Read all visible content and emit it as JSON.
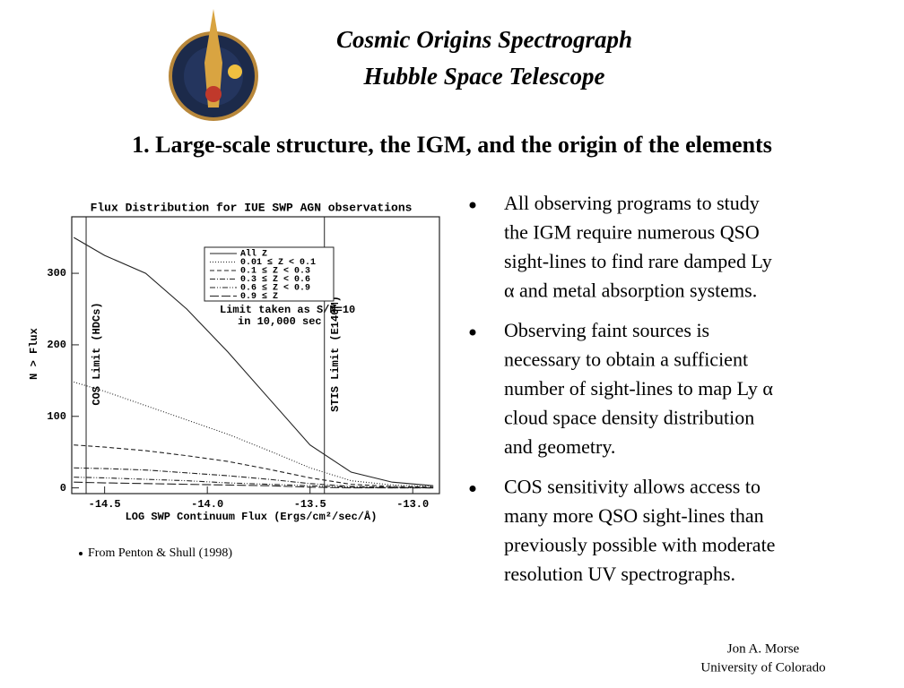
{
  "header": {
    "lines": [
      "Cosmic Origins Spectrograph",
      "Hubble Space Telescope"
    ]
  },
  "heading": "1. Large-scale structure, the IGM, and the origin of the elements",
  "chart_data": {
    "type": "line",
    "title": "Flux Distribution for IUE SWP AGN observations",
    "x_label": "LOG SWP Continuum Flux (Ergs/cm²/sec/Å)",
    "y_label": "N > Flux",
    "x": [
      -14.65,
      -14.5,
      -14.3,
      -14.1,
      -13.9,
      -13.7,
      -13.5,
      -13.3,
      -13.1,
      -12.9
    ],
    "series": [
      {
        "name": "All Z",
        "color": "#222222",
        "dash": "none",
        "values": [
          350,
          325,
          300,
          250,
          190,
          125,
          60,
          22,
          8,
          3
        ]
      },
      {
        "name": "0.01 ≤ Z < 0.1",
        "color": "#222222",
        "dash": "1 2",
        "values": [
          148,
          135,
          115,
          95,
          75,
          52,
          28,
          10,
          4,
          2
        ]
      },
      {
        "name": "0.1 ≤ Z < 0.3",
        "color": "#222222",
        "dash": "5 3",
        "values": [
          60,
          57,
          52,
          45,
          37,
          26,
          14,
          5,
          2,
          1
        ]
      },
      {
        "name": "0.3 ≤ Z < 0.6",
        "color": "#222222",
        "dash": "6 2 1 2",
        "values": [
          28,
          27,
          25,
          21,
          17,
          12,
          6,
          2,
          1,
          0
        ]
      },
      {
        "name": "0.6 ≤ Z < 0.9",
        "color": "#222222",
        "dash": "6 2 1 2 1 2",
        "values": [
          15,
          14,
          12,
          10,
          7,
          5,
          3,
          1,
          0,
          0
        ]
      },
      {
        "name": "0.9 ≤ Z",
        "color": "#222222",
        "dash": "10 3",
        "values": [
          8,
          7,
          6,
          5,
          4,
          3,
          1,
          0,
          0,
          0
        ]
      }
    ],
    "limits": [
      {
        "label": "COS Limit (HDCs)",
        "x": -14.59
      },
      {
        "label": "STIS Limit (E140M)",
        "x": -13.43
      }
    ],
    "annotation": [
      "Limit taken as S/N=10",
      "in 10,000 sec"
    ],
    "xlim": [
      -14.66,
      -12.87
    ],
    "ylim": [
      -8,
      379
    ],
    "xticks": [
      -14.5,
      {
        "value": -14,
        "label": "-14.0"
      },
      -13.5,
      {
        "value": -13,
        "label": "-13.0"
      }
    ],
    "yticks": [
      0,
      100,
      200,
      300
    ]
  },
  "caption": "From Penton & Shull (1998)",
  "bullets": [
    {
      "lines": [
        "All observing programs to study",
        "the IGM require numerous QSO",
        "sight-lines to find rare damped Ly",
        "α and metal absorption systems."
      ]
    },
    {
      "lines": [
        "Observing faint sources is",
        "necessary to obtain a sufficient",
        "number of sight-lines to map Ly α",
        "cloud space density distribution",
        "and geometry."
      ]
    },
    {
      "lines": [
        "COS sensitivity allows access to",
        "many more QSO sight-lines than",
        "previously possible with moderate",
        "resolution UV spectrographs."
      ]
    }
  ],
  "footer": {
    "lines": [
      "Jon A.  Morse",
      "University of Colorado"
    ]
  }
}
